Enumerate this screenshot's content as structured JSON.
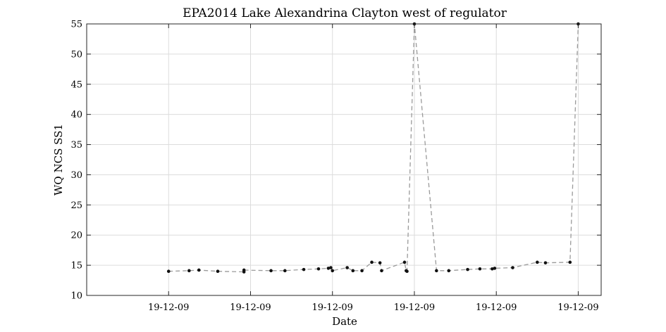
{
  "chart_data": {
    "type": "line",
    "title": "EPA2014 Lake Alexandrina Clayton west of regulator",
    "xlabel": "Date",
    "ylabel": "WQ NCS SS1",
    "ylim": [
      10,
      55
    ],
    "yticks": [
      10,
      15,
      20,
      25,
      30,
      35,
      40,
      45,
      50,
      55
    ],
    "xtick_labels": [
      "19-12-09",
      "19-12-09",
      "19-12-09",
      "19-12-09",
      "19-12-09",
      "19-12-09"
    ],
    "grid": true,
    "legend": "none",
    "line_color": "#9a9a9a",
    "marker_color": "#111111",
    "series": [
      {
        "x": [
          1.0,
          1.25,
          1.37,
          1.6,
          1.92,
          1.92,
          2.25,
          2.42,
          2.65,
          2.83,
          2.95,
          2.98,
          3.0,
          3.18,
          3.25,
          3.36,
          3.48,
          3.58,
          3.6,
          3.88,
          3.9,
          3.91,
          4.0,
          4.27,
          4.42,
          4.65,
          4.8,
          4.95,
          4.98,
          5.2,
          5.5,
          5.6,
          5.9,
          6.0
        ],
        "y": [
          14.0,
          14.1,
          14.2,
          14.0,
          13.9,
          14.2,
          14.1,
          14.1,
          14.3,
          14.4,
          14.5,
          14.6,
          14.1,
          14.6,
          14.1,
          14.1,
          15.5,
          15.4,
          14.1,
          15.5,
          14.1,
          14.0,
          55.0,
          14.1,
          14.1,
          14.3,
          14.4,
          14.4,
          14.5,
          14.6,
          15.5,
          15.4,
          15.5,
          55.0
        ]
      }
    ]
  }
}
